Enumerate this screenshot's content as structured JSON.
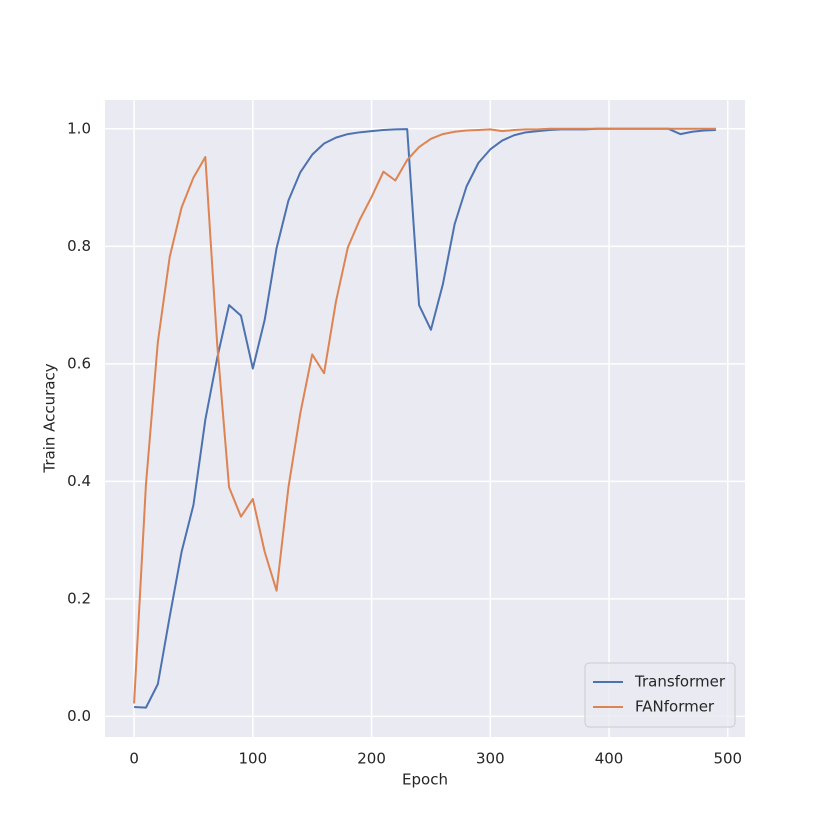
{
  "chart_data": {
    "type": "line",
    "x": [
      0,
      10,
      20,
      30,
      40,
      50,
      60,
      70,
      80,
      90,
      100,
      110,
      120,
      130,
      140,
      150,
      160,
      170,
      180,
      190,
      200,
      210,
      220,
      230,
      240,
      250,
      260,
      270,
      280,
      290,
      300,
      310,
      320,
      330,
      340,
      350,
      360,
      370,
      380,
      390,
      400,
      410,
      420,
      430,
      440,
      450,
      460,
      470,
      480,
      490
    ],
    "series": [
      {
        "name": "Transformer",
        "color": "#4c72b0",
        "values": [
          0.016,
          0.015,
          0.055,
          0.17,
          0.28,
          0.36,
          0.505,
          0.61,
          0.7,
          0.682,
          0.592,
          0.675,
          0.797,
          0.878,
          0.926,
          0.956,
          0.975,
          0.985,
          0.991,
          0.994,
          0.996,
          0.998,
          0.999,
          0.9995,
          0.7,
          0.658,
          0.735,
          0.838,
          0.902,
          0.942,
          0.965,
          0.98,
          0.989,
          0.994,
          0.996,
          0.998,
          0.999,
          0.999,
          0.999,
          1.0,
          1.0,
          1.0,
          1.0,
          1.0,
          1.0,
          1.0,
          0.991,
          0.995,
          0.997,
          0.998
        ]
      },
      {
        "name": "FANformer",
        "color": "#dd8452",
        "values": [
          0.022,
          0.395,
          0.637,
          0.782,
          0.866,
          0.917,
          0.952,
          0.633,
          0.39,
          0.34,
          0.37,
          0.28,
          0.214,
          0.39,
          0.516,
          0.616,
          0.584,
          0.706,
          0.798,
          0.845,
          0.884,
          0.927,
          0.912,
          0.947,
          0.969,
          0.983,
          0.991,
          0.995,
          0.997,
          0.998,
          0.999,
          0.996,
          0.998,
          0.999,
          0.999,
          1.0,
          1.0,
          1.0,
          1.0,
          1.0,
          1.0,
          1.0,
          1.0,
          1.0,
          1.0,
          1.0,
          1.0,
          1.0,
          1.0,
          1.0
        ]
      }
    ],
    "xlabel": "Epoch",
    "ylabel": "Train Accuracy",
    "xlim": [
      -24.5,
      514.5
    ],
    "ylim": [
      -0.035,
      1.049
    ],
    "xticks": [
      0,
      100,
      200,
      300,
      400,
      500
    ],
    "yticks": [
      {
        "value": 0,
        "label": "0.0"
      },
      {
        "value": 0.2,
        "label": "0.2"
      },
      {
        "value": 0.4,
        "label": "0.4"
      },
      {
        "value": 0.6,
        "label": "0.6"
      },
      {
        "value": 0.8,
        "label": "0.8"
      },
      {
        "value": 1,
        "label": "1.0"
      }
    ],
    "grid": true,
    "legend": "lower right"
  }
}
